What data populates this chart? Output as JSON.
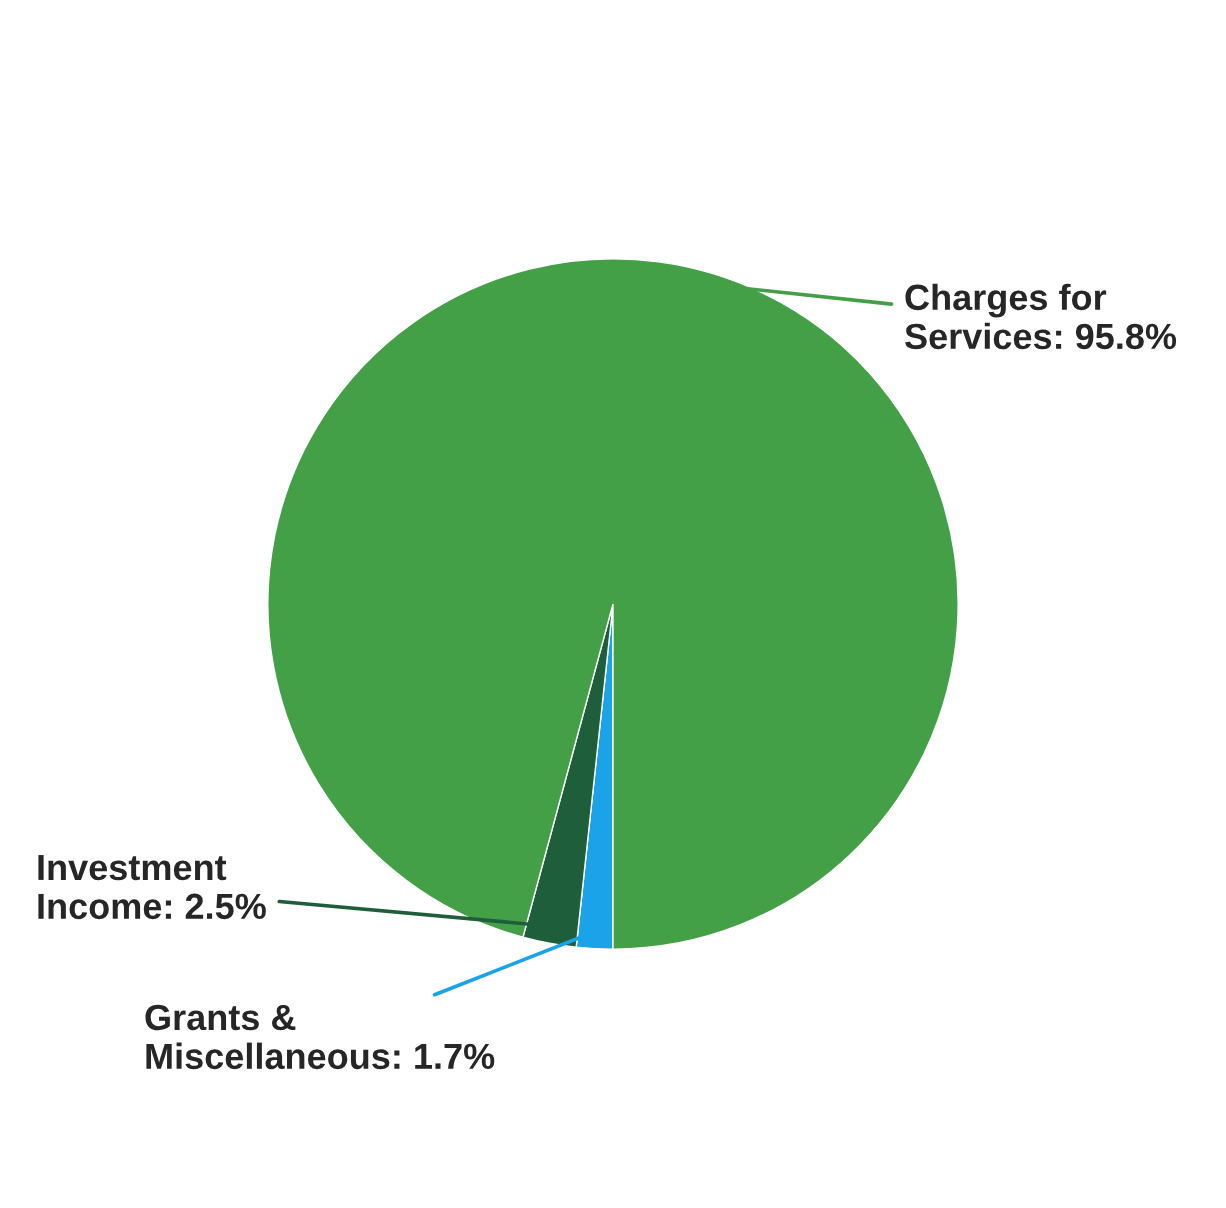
{
  "chart_data": {
    "type": "pie",
    "categories": [
      "Grants & Miscellaneous",
      "Investment Income",
      "Charges for Services"
    ],
    "values": [
      1.7,
      2.5,
      95.8
    ],
    "value_labels": [
      "1.7%",
      "2.5%",
      "95.8%"
    ],
    "colors": [
      "#1aa3e8",
      "#1e5e3a",
      "#43a047"
    ]
  }
}
